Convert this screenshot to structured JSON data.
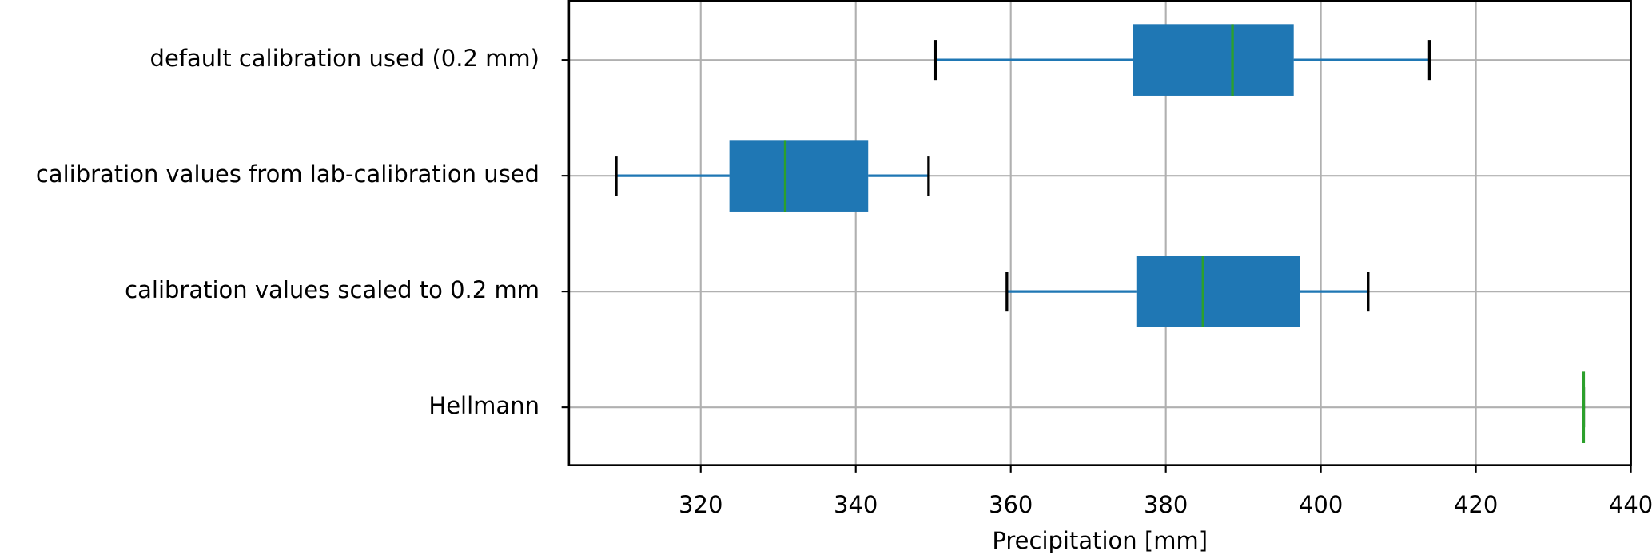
{
  "chart_data": {
    "type": "boxplot",
    "xlabel": "Precipitation [mm]",
    "categories": [
      "default calibration used (0.2 mm)",
      "calibration values from lab-calibration used",
      "calibration values scaled to 0.2 mm",
      "Hellmann"
    ],
    "boxes": [
      {
        "min": 350.3,
        "q1": 375.8,
        "median": 388.6,
        "q3": 396.5,
        "max": 414.0
      },
      {
        "min": 309.1,
        "q1": 323.7,
        "median": 330.9,
        "q3": 341.6,
        "max": 349.4
      },
      {
        "min": 359.5,
        "q1": 376.3,
        "median": 384.8,
        "q3": 397.3,
        "max": 406.1
      },
      {
        "min": 433.9,
        "q1": 433.9,
        "median": 433.9,
        "q3": 433.9,
        "max": 433.9
      }
    ],
    "box_color": "#1f77b4",
    "median_color": "#2ca02c",
    "cap_color": "#000000",
    "xlim": [
      303,
      440
    ],
    "xticks": [
      320,
      340,
      360,
      380,
      400,
      420,
      440
    ],
    "grid": true
  }
}
